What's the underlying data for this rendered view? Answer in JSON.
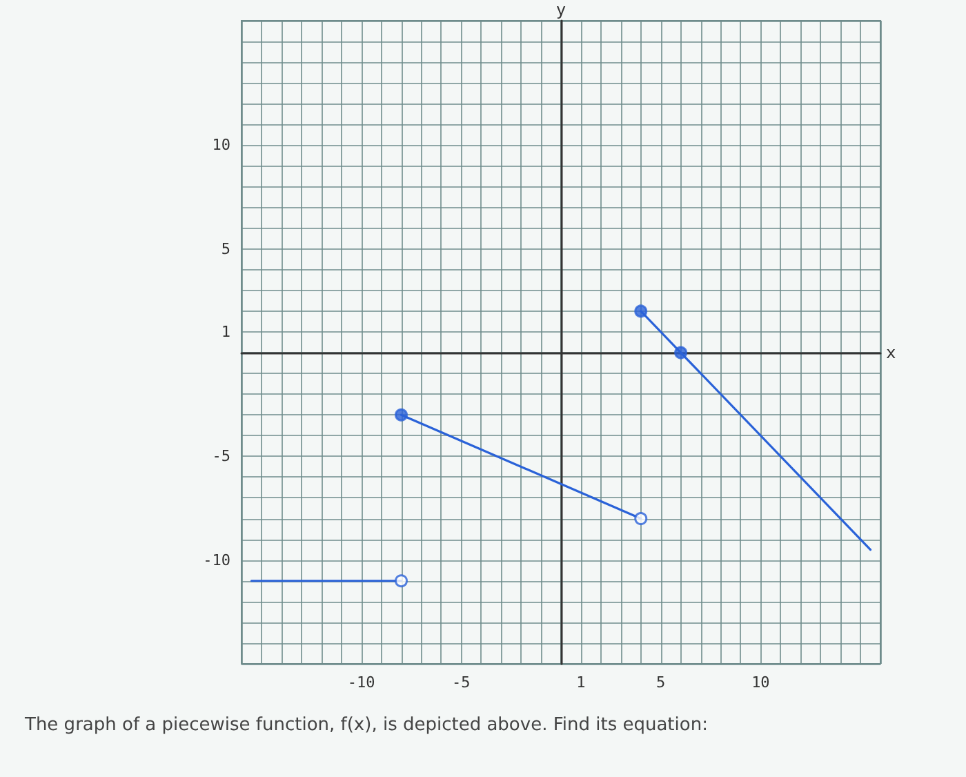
{
  "chart_data": {
    "type": "line",
    "xlabel": "x",
    "ylabel": "y",
    "xlim": [
      -16,
      16
    ],
    "ylim": [
      -15,
      16
    ],
    "xticks": [
      -10,
      -5,
      1,
      5,
      10
    ],
    "yticks": [
      -10,
      -5,
      1,
      5,
      10
    ],
    "grid": true,
    "line_style": "solid",
    "series": [
      {
        "color": "#2a62d8",
        "x": [
          -15.5,
          -8
        ],
        "values": [
          -11,
          -11
        ]
      },
      {
        "color": "#2a62d8",
        "x": [
          -8,
          4
        ],
        "values": [
          -3,
          -8
        ]
      },
      {
        "color": "#2a62d8",
        "x": [
          4,
          6,
          15.5
        ],
        "values": [
          2,
          0,
          -9.5
        ]
      },
      {
        "type": "scatter",
        "color": "#2a62d8",
        "x": [
          -8,
          4,
          6
        ],
        "values": [
          -3,
          2,
          0
        ]
      },
      {
        "type": "scatter",
        "color": "#ffffff",
        "x": [
          -8,
          4
        ],
        "values": [
          -11,
          -8
        ]
      }
    ],
    "annotations": [
      "The graph of a piecewise function, f(x), is depicted above. Find its equation:"
    ]
  }
}
